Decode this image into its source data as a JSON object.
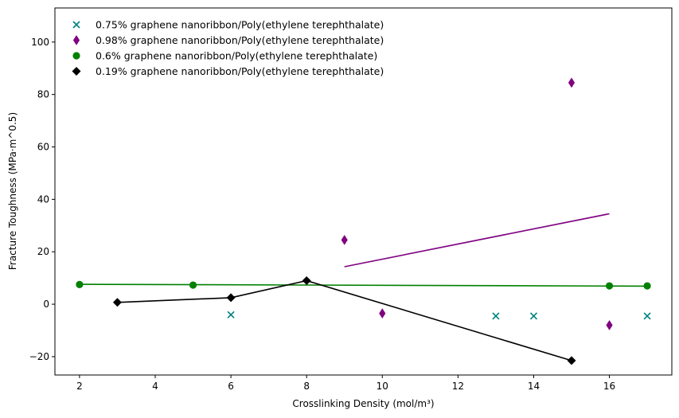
{
  "chart_data": {
    "type": "scatter",
    "xlabel": "Crosslinking Density (mol/m³)",
    "ylabel": "Fracture Toughness (MPa·m^0.5)",
    "xlim": [
      1.35,
      17.65
    ],
    "ylim": [
      -27,
      113
    ],
    "x_ticks": [
      2,
      4,
      6,
      8,
      10,
      12,
      14,
      16
    ],
    "y_ticks": [
      -20,
      0,
      20,
      40,
      60,
      80,
      100
    ],
    "y_tick_labels": [
      "−20",
      "0",
      "20",
      "40",
      "60",
      "80",
      "100"
    ],
    "grid": false,
    "legend_position": "top-left",
    "series": [
      {
        "name": "0.75% graphene nanoribbon/Poly(ethylene terephthalate)",
        "marker": "x",
        "color": "#008080",
        "x": [
          6,
          13,
          14,
          17
        ],
        "y": [
          -4,
          -4.5,
          -4.5,
          -4.5
        ],
        "line": null
      },
      {
        "name": "0.98% graphene nanoribbon/Poly(ethylene terephthalate)",
        "marker": "thin-diamond",
        "color": "#800080",
        "x": [
          9,
          10,
          15,
          16
        ],
        "y": [
          24.5,
          -3.5,
          84.5,
          -8
        ],
        "line": {
          "type": "trend",
          "x": [
            9,
            16
          ],
          "y": [
            14.3,
            34.5
          ]
        }
      },
      {
        "name": "0.6% graphene nanoribbon/Poly(ethylene terephthalate)",
        "marker": "circle",
        "color": "#008000",
        "x": [
          2,
          5,
          16,
          17
        ],
        "y": [
          7.5,
          7.3,
          7,
          7
        ],
        "line": {
          "type": "trend",
          "x": [
            2,
            17
          ],
          "y": [
            7.6,
            6.9
          ]
        }
      },
      {
        "name": "0.19% graphene nanoribbon/Poly(ethylene terephthalate)",
        "marker": "diamond",
        "color": "#000000",
        "x": [
          3,
          6,
          8,
          15
        ],
        "y": [
          0.7,
          2.5,
          9,
          -21.5
        ],
        "line": {
          "type": "connect"
        }
      }
    ]
  }
}
